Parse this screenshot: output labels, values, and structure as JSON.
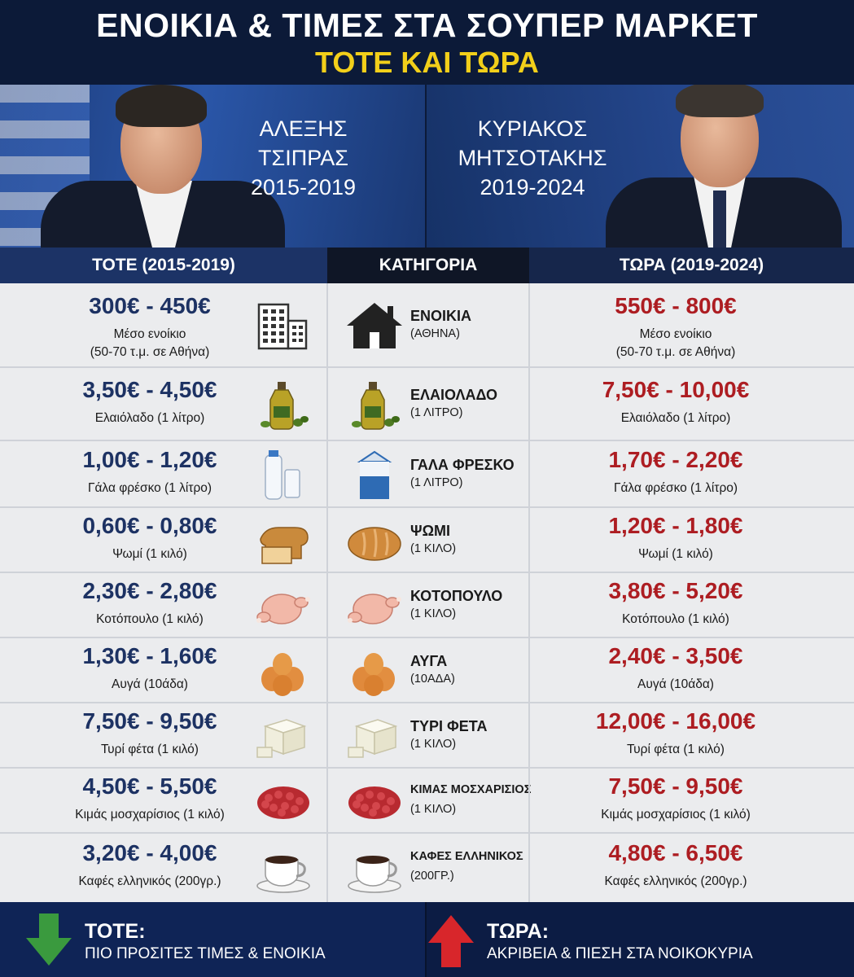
{
  "header": {
    "title_line1": "ΕΝΟΙΚΙΑ & ΤΙΜΕΣ ΣΤΑ ΣΟΥΠΕΡ ΜΑΡΚΕΤ",
    "title_line2": "ΤΟΤΕ ΚΑΙ ΤΩΡΑ"
  },
  "left_person": {
    "name_line1": "ΑΛΕΞΗΣ",
    "name_line2": "ΤΣΙΠΡΑΣ",
    "period": "2015-2019"
  },
  "right_person": {
    "name_line1": "ΚΥΡΙΑΚΟΣ",
    "name_line2": "ΜΗΤΣΟΤΑΚΗΣ",
    "period": "2019-2024"
  },
  "columns": {
    "then": "ΤΟΤΕ (2015-2019)",
    "category": "ΚΑΤΗΓΟΡΙΑ",
    "now": "ΤΩΡΑ (2019-2024)"
  },
  "rows": [
    {
      "icon": "building-icon",
      "cat_icon": "house-icon",
      "category": "ΕΝΟΙΚΙΑ",
      "category_sub": "(ΑΘΗΝΑ)",
      "then_price": "300€ - 450€",
      "then_sub1": "Μέσο ενοίκιο",
      "then_sub2": "(50-70 τ.μ. σε Αθήνα)",
      "now_price": "550€ - 800€",
      "now_sub1": "Μέσο ενοίκιο",
      "now_sub2": "(50-70 τ.μ. σε Αθήνα)"
    },
    {
      "icon": "olive-oil-icon",
      "cat_icon": "olive-oil-icon",
      "category": "ΕΛΑΙΟΛΑΔΟ",
      "category_sub": "(1 ΛΙΤΡΟ)",
      "then_price": "3,50€ - 4,50€",
      "then_sub1": "Ελαιόλαδο (1 λίτρο)",
      "then_sub2": "",
      "now_price": "7,50€ - 10,00€",
      "now_sub1": "Ελαιόλαδο (1 λίτρο)",
      "now_sub2": ""
    },
    {
      "icon": "milk-icon",
      "cat_icon": "milk-carton-icon",
      "category": "ΓΑΛΑ ΦΡΕΣΚΟ",
      "category_sub": "(1 ΛΙΤΡΟ)",
      "then_price": "1,00€ - 1,20€",
      "then_sub1": "Γάλα φρέσκο (1 λίτρο)",
      "then_sub2": "",
      "now_price": "1,70€ - 2,20€",
      "now_sub1": "Γάλα φρέσκο (1 λίτρο)",
      "now_sub2": ""
    },
    {
      "icon": "bread-icon",
      "cat_icon": "bread-loaf-icon",
      "category": "ΨΩΜΙ",
      "category_sub": "(1 ΚΙΛΟ)",
      "then_price": "0,60€ - 0,80€",
      "then_sub1": "Ψωμί (1 κιλό)",
      "then_sub2": "",
      "now_price": "1,20€ - 1,80€",
      "now_sub1": "Ψωμί (1 κιλό)",
      "now_sub2": ""
    },
    {
      "icon": "chicken-icon",
      "cat_icon": "chicken-icon",
      "category": "ΚΟΤΟΠΟΥΛΟ",
      "category_sub": "(1 ΚΙΛΟ)",
      "then_price": "2,30€ - 2,80€",
      "then_sub1": "Κοτόπουλο (1 κιλό)",
      "then_sub2": "",
      "now_price": "3,80€ - 5,20€",
      "now_sub1": "Κοτόπουλο (1 κιλό)",
      "now_sub2": ""
    },
    {
      "icon": "eggs-icon",
      "cat_icon": "eggs-icon",
      "category": "ΑΥΓΑ",
      "category_sub": "(10ΑΔΑ)",
      "then_price": "1,30€ - 1,60€",
      "then_sub1": "Αυγά (10άδα)",
      "then_sub2": "",
      "now_price": "2,40€ - 3,50€",
      "now_sub1": "Αυγά (10άδα)",
      "now_sub2": ""
    },
    {
      "icon": "feta-icon",
      "cat_icon": "feta-icon",
      "category": "ΤΥΡΙ ΦΕΤΑ",
      "category_sub": "(1 ΚΙΛΟ)",
      "then_price": "7,50€ - 9,50€",
      "then_sub1": "Τυρί φέτα (1 κιλό)",
      "then_sub2": "",
      "now_price": "12,00€ - 16,00€",
      "now_sub1": "Τυρί φέτα (1 κιλό)",
      "now_sub2": ""
    },
    {
      "icon": "minced-meat-icon",
      "cat_icon": "minced-meat-icon",
      "category": "ΚΙΜΑΣ ΜΟΣΧΑΡΙΣΙΟΣ",
      "category_sub": "(1 ΚΙΛΟ)",
      "then_price": "4,50€ - 5,50€",
      "then_sub1": "Κιμάς μοσχαρίσιος (1 κιλό)",
      "then_sub2": "",
      "now_price": "7,50€ - 9,50€",
      "now_sub1": "Κιμάς μοσχαρίσιος (1 κιλό)",
      "now_sub2": ""
    },
    {
      "icon": "coffee-cup-icon",
      "cat_icon": "coffee-cup-icon",
      "category": "ΚΑΦΕΣ ΕΛΛΗΝΙΚΟΣ",
      "category_sub": "(200ΓΡ.)",
      "then_price": "3,20€ - 4,00€",
      "then_sub1": "Καφές ελληνικός (200γρ.)",
      "then_sub2": "",
      "now_price": "4,80€ - 6,50€",
      "now_sub1": "Καφές ελληνικός (200γρ.)",
      "now_sub2": ""
    }
  ],
  "footer": {
    "left_head": "ΤΟΤΕ:",
    "left_text": "ΠΙΟ ΠΡΟΣΙΤΕΣ ΤΙΜΕΣ & ΕΝΟΙΚΙΑ",
    "right_head": "ΤΩΡΑ:",
    "right_text": "ΑΚΡΙΒΕΙΑ & ΠΙΕΣΗ ΣΤΑ ΝΟΙΚΟΚΥΡΙΑ"
  },
  "colors": {
    "then_price": "#1d3263",
    "now_price": "#ad1d22",
    "title_accent": "#f2cf1a",
    "down_arrow": "#3a9a3e",
    "up_arrow": "#d8262b"
  }
}
